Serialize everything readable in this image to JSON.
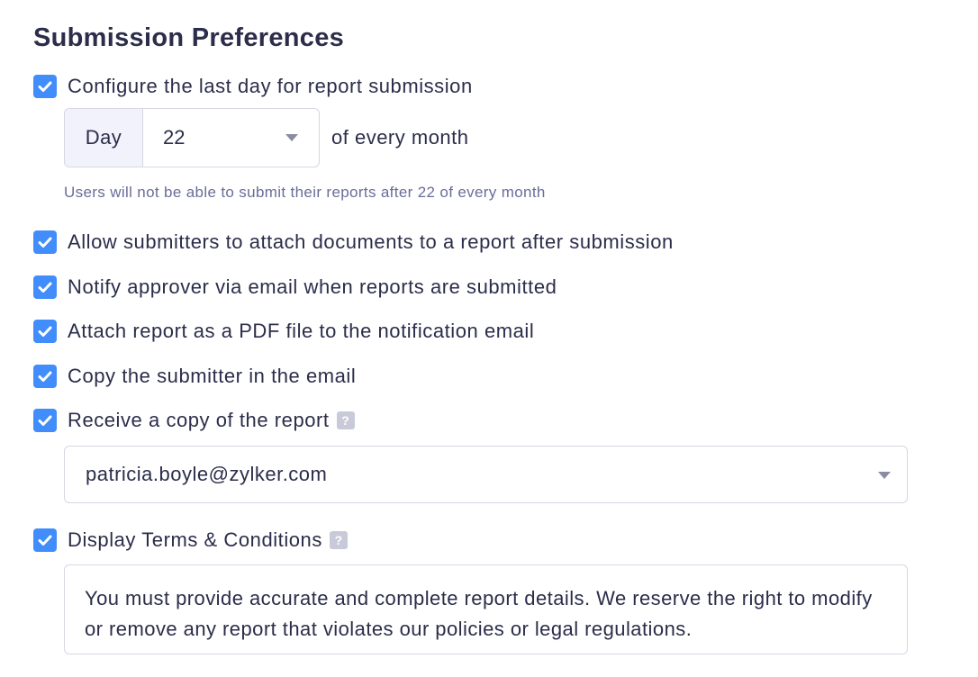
{
  "section_title": "Submission Preferences",
  "last_day": {
    "label": "Configure the last day for report submission",
    "checked": true,
    "addon": "Day",
    "selected_day": "22",
    "suffix": "of every month",
    "hint": "Users will not be able to submit their reports after 22 of every month"
  },
  "options": [
    {
      "label": "Allow submitters to attach documents to a report after submission",
      "checked": true
    },
    {
      "label": "Notify approver via email when reports are submitted",
      "checked": true
    },
    {
      "label": "Attach report as a PDF file to the notification email",
      "checked": true
    },
    {
      "label": "Copy the submitter in the email",
      "checked": true
    },
    {
      "label": "Receive a copy of the report",
      "checked": true,
      "help_icon": "?"
    }
  ],
  "copy_recipient": "patricia.boyle@zylker.com",
  "terms": {
    "label": "Display Terms & Conditions",
    "checked": true,
    "help_icon": "?",
    "text": "You must provide accurate and complete report details. We reserve the right to modify or remove any report that violates our policies or legal regulations."
  },
  "colors": {
    "accent": "#408dfb",
    "text": "#2b2d4a",
    "hint": "#6a6d99"
  }
}
